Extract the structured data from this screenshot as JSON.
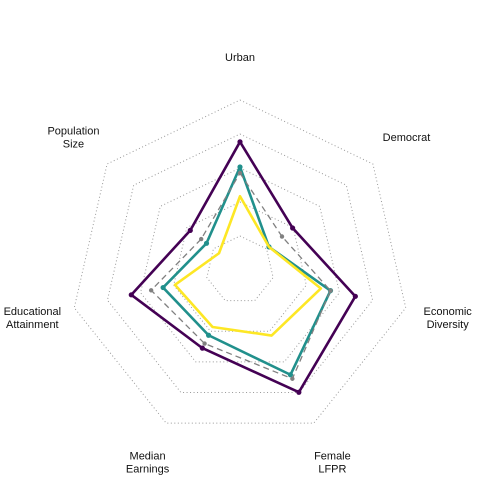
{
  "chart_data": {
    "type": "radar",
    "axes": [
      {
        "key": "urban",
        "lines": [
          "Urban"
        ]
      },
      {
        "key": "democrat",
        "lines": [
          "Democrat"
        ]
      },
      {
        "key": "economic_diversity",
        "lines": [
          "Economic",
          "Diversity"
        ]
      },
      {
        "key": "female_lfpr",
        "lines": [
          "Female",
          "LFPR"
        ]
      },
      {
        "key": "median_earnings",
        "lines": [
          "Median",
          "Earnings"
        ]
      },
      {
        "key": "educational_attainment",
        "lines": [
          "Educational",
          "Attainment"
        ]
      },
      {
        "key": "population_size",
        "lines": [
          "Population",
          "Size"
        ]
      }
    ],
    "rlim": [
      0,
      5
    ],
    "grid_rings": 5,
    "grid": true,
    "legend": "none",
    "series": [
      {
        "color": "#440154",
        "line_style": "solid",
        "markers": true,
        "values": [
          3.77,
          1.98,
          3.48,
          3.99,
          2.55,
          3.28,
          1.87
        ]
      },
      {
        "color": "#21908C",
        "line_style": "solid",
        "markers": true,
        "values": [
          3.03,
          1.09,
          2.73,
          3.42,
          2.13,
          2.32,
          1.26
        ]
      },
      {
        "color": "#808080",
        "line_style": "dashed",
        "markers": true,
        "values": [
          2.85,
          1.58,
          2.73,
          3.55,
          2.4,
          2.68,
          1.46
        ]
      },
      {
        "color": "#FDE725",
        "line_style": "solid",
        "markers": false,
        "values": [
          2.17,
          1.09,
          2.44,
          2.14,
          1.86,
          1.96,
          0.79
        ]
      }
    ]
  }
}
